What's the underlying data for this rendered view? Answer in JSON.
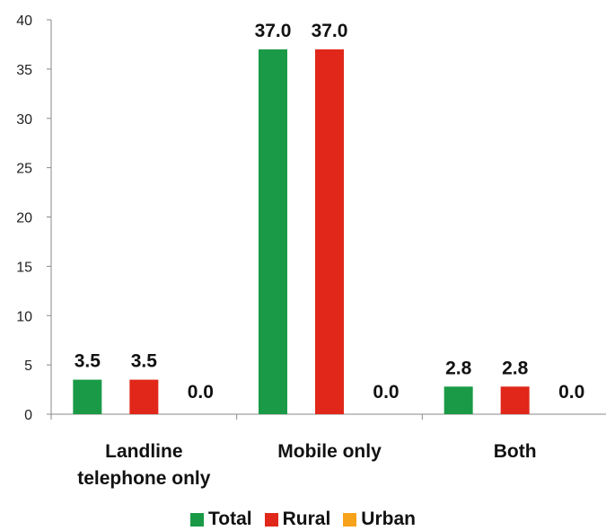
{
  "chart_data": {
    "type": "bar",
    "categories": [
      [
        "Landline",
        "telephone only"
      ],
      [
        "Mobile only"
      ],
      [
        "Both"
      ]
    ],
    "series": [
      {
        "name": "Total",
        "color": "#1a9a46",
        "values": [
          3.5,
          37.0,
          2.8
        ]
      },
      {
        "name": "Rural",
        "color": "#e0271a",
        "values": [
          3.5,
          37.0,
          2.8
        ]
      },
      {
        "name": "Urban",
        "color": "#f7a21b",
        "values": [
          0.0,
          0.0,
          0.0
        ]
      }
    ],
    "ylim": [
      0,
      40
    ],
    "yticks": [
      "0",
      "5",
      "10",
      "15",
      "20",
      "25",
      "30",
      "35",
      "40"
    ],
    "data_labels": [
      [
        "3.5",
        "37.0",
        "2.8"
      ],
      [
        "3.5",
        "37.0",
        "2.8"
      ],
      [
        "0.0",
        "0.0",
        "0.0"
      ]
    ],
    "legend_position": "bottom",
    "grid": false
  }
}
